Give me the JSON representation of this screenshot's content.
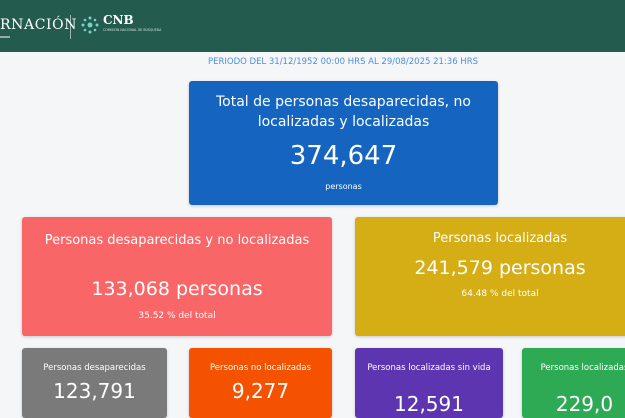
{
  "header": {
    "gov_text": "RNACIÓN",
    "cnb_title": "CNB",
    "cnb_subtitle": "COMISIÓN NACIONAL DE BÚSQUEDA"
  },
  "period": "PERIODO DEL 31/12/1952 00:00 HRS AL 29/08/2025 21:36 HRS",
  "total": {
    "title": "Total de personas desaparecidas, no localizadas y localizadas",
    "value": "374,647",
    "unit": "personas"
  },
  "desaparecidas_no_localizadas": {
    "title": "Personas desaparecidas y no localizadas",
    "value": "133,068 personas",
    "percent": "35.52 % del total"
  },
  "localizadas": {
    "title": "Personas localizadas",
    "value": "241,579 personas",
    "percent": "64.48 % del total"
  },
  "small_cards": [
    {
      "title": "Personas desaparecidas",
      "value": "123,791"
    },
    {
      "title": "Personas no localizadas",
      "value": "9,277"
    },
    {
      "title": "Personas localizadas sin vida",
      "value": "12,591"
    },
    {
      "title": "Personas localizadas",
      "value": "229,0"
    }
  ],
  "colors": {
    "header": "#235b4e",
    "total": "#1565c0",
    "desaparecidas_no_localizadas": "#f96668",
    "localizadas": "#d5ad15",
    "desaparecidas": "#7a7a7a",
    "no_localizadas": "#f55200",
    "localizadas_sin_vida": "#5e35b1",
    "localizadas_con_vida": "#2eaa55"
  }
}
